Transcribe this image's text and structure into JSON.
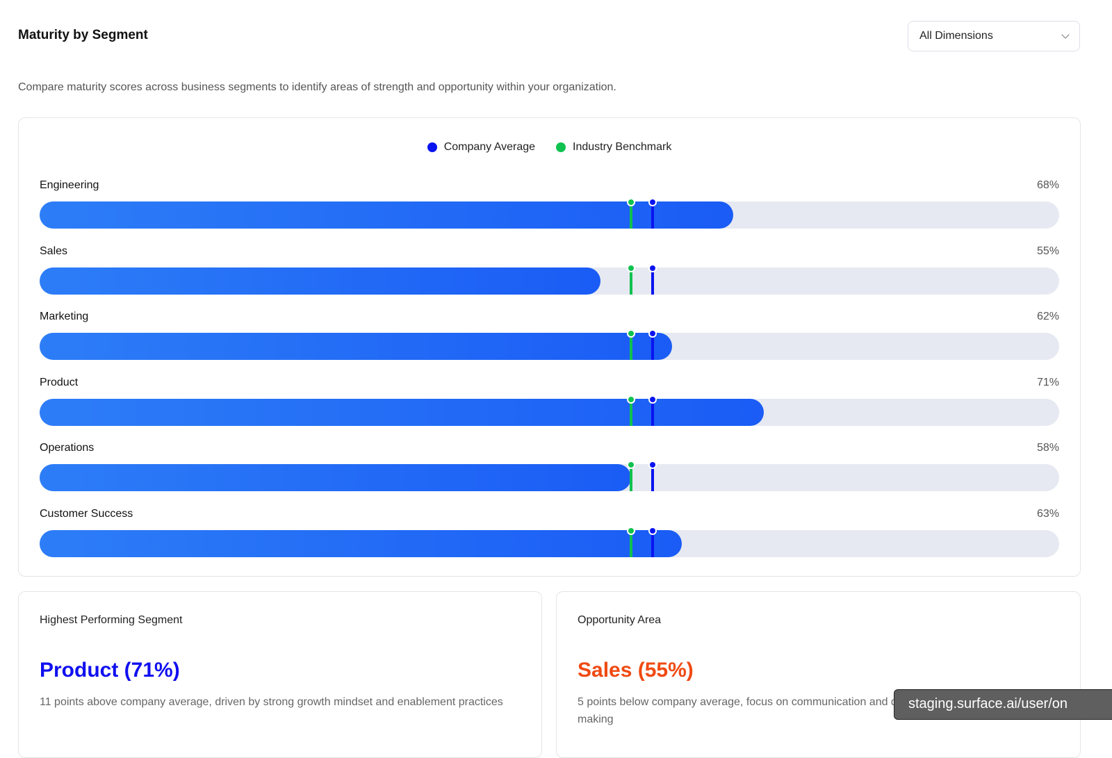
{
  "header": {
    "title": "Maturity by Segment",
    "filter": "All Dimensions",
    "description": "Compare maturity scores across business segments to identify areas of strength and opportunity within your organization."
  },
  "legend": {
    "company_average": "Company Average",
    "industry_benchmark": "Industry Benchmark"
  },
  "colors": {
    "company_average": "#0a14f0",
    "industry_benchmark": "#0fc24f",
    "bar": "#1f66f5",
    "track": "#e6e9f1",
    "highlight": "#1010f0",
    "opportunity": "#f04a12"
  },
  "benchmarks": {
    "company_average_pct": 60,
    "industry_benchmark_pct": 58
  },
  "segments": [
    {
      "name": "Engineering",
      "value": 68,
      "label": "68%"
    },
    {
      "name": "Sales",
      "value": 55,
      "label": "55%"
    },
    {
      "name": "Marketing",
      "value": 62,
      "label": "62%"
    },
    {
      "name": "Product",
      "value": 71,
      "label": "71%"
    },
    {
      "name": "Operations",
      "value": 58,
      "label": "58%"
    },
    {
      "name": "Customer Success",
      "value": 63,
      "label": "63%"
    }
  ],
  "highest": {
    "title": "Highest Performing Segment",
    "value": "Product (71%)",
    "note": "11 points above company average, driven by strong growth mindset and enablement practices"
  },
  "opportunity": {
    "title": "Opportunity Area",
    "value": "Sales (55%)",
    "note": "5 points below company average, focus on communication and decision making"
  },
  "status_url": "staging.surface.ai/user/on"
}
